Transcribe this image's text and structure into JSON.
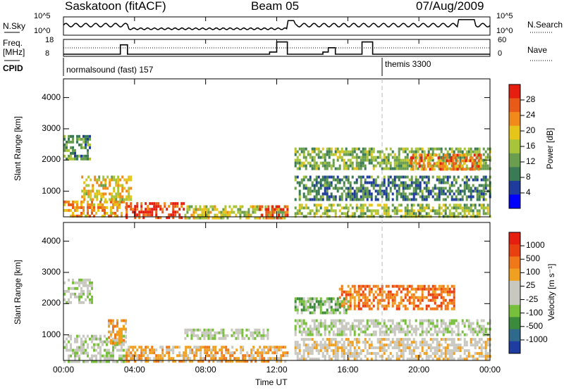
{
  "header": {
    "station": "Saskatoon (fitACF)",
    "beam": "Beam 05",
    "date": "07/Aug/2009"
  },
  "top_panels": {
    "nsky_label": "N.Sky",
    "nsky_ticks": [
      "10^5",
      "10^0"
    ],
    "nsearch_label": "N.Search",
    "nsearch_ticks": [
      "10^5",
      "10^0"
    ],
    "freq_label_1": "Freq.",
    "freq_label_2": "[MHz]",
    "freq_ticks": [
      "18",
      "8"
    ],
    "nave_label": "Nave",
    "nave_ticks": [
      "60",
      "0"
    ],
    "cpid_label": "CPID",
    "cpid_segments": [
      {
        "name": "normalsound (fast) 157",
        "start_hour": 0
      },
      {
        "name": "themis 3300",
        "start_hour": 18
      }
    ]
  },
  "colors": {
    "power_scale": [
      "#0000ff",
      "#1f3c9c",
      "#3a7a55",
      "#6a9e4e",
      "#a8c43a",
      "#e6c41a",
      "#f08a1a",
      "#e85a18",
      "#e61e10"
    ],
    "velocity_scale": [
      "#1f3ca0",
      "#2f6a8c",
      "#3c8a3c",
      "#78c03c",
      "#c8c8c0",
      "#c8c8c0",
      "#f0a020",
      "#f07818",
      "#e84010",
      "#e61e10"
    ]
  },
  "chart_data": [
    {
      "type": "heatmap",
      "name": "power",
      "ylabel": "Slant Range [km]",
      "yticks": [
        "4000",
        "3000",
        "2000",
        "1000"
      ],
      "ylim": [
        180,
        4600
      ],
      "xlim_hours": [
        0,
        24
      ],
      "colorbar_label": "Power [dB]",
      "colorbar_ticks": [
        "28",
        "24",
        "20",
        "16",
        "12",
        "8",
        "4"
      ],
      "colorbar_range": [
        0,
        30
      ],
      "regions": [
        {
          "t0": 0.0,
          "t1": 3.5,
          "r0": 180,
          "r1": 700,
          "level": 22
        },
        {
          "t0": 1.0,
          "t1": 3.8,
          "r0": 700,
          "r1": 1500,
          "level": 18
        },
        {
          "t0": 0.0,
          "t1": 1.5,
          "r0": 2000,
          "r1": 2800,
          "level": 10
        },
        {
          "t0": 3.5,
          "t1": 6.8,
          "r0": 180,
          "r1": 650,
          "level": 28
        },
        {
          "t0": 6.8,
          "t1": 12.5,
          "r0": 180,
          "r1": 550,
          "level": 16
        },
        {
          "t0": 11.0,
          "t1": 12.6,
          "r0": 180,
          "r1": 550,
          "level": 28
        },
        {
          "t0": 13.0,
          "t1": 24.0,
          "r0": 180,
          "r1": 600,
          "level": 14
        },
        {
          "t0": 13.0,
          "t1": 24.0,
          "r0": 700,
          "r1": 1500,
          "level": 8
        },
        {
          "t0": 13.0,
          "t1": 24.0,
          "r0": 1700,
          "r1": 2400,
          "level": 12
        },
        {
          "t0": 19.5,
          "t1": 23.5,
          "r0": 1700,
          "r1": 2200,
          "level": 24
        }
      ]
    },
    {
      "type": "heatmap",
      "name": "velocity",
      "xlabel": "Time UT",
      "ylabel": "Slant Range [km]",
      "yticks": [
        "4000",
        "3000",
        "2000",
        "1000"
      ],
      "ylim": [
        180,
        4600
      ],
      "xlim_hours": [
        0,
        24
      ],
      "xticks": [
        "00:00",
        "04:00",
        "08:00",
        "12:00",
        "16:00",
        "20:00",
        "00:00"
      ],
      "colorbar_label": "Velocity [m s⁻¹]",
      "colorbar_ticks": [
        "1000",
        "500",
        "100",
        "25",
        "-25",
        "-100",
        "-500",
        "-1000"
      ],
      "regions": [
        {
          "t0": 0.0,
          "t1": 3.5,
          "r0": 180,
          "r1": 1000,
          "level": 4
        },
        {
          "t0": 0.0,
          "t1": 1.6,
          "r0": 2000,
          "r1": 2800,
          "level": 4
        },
        {
          "t0": 2.5,
          "t1": 3.5,
          "r0": 700,
          "r1": 1500,
          "level": 6
        },
        {
          "t0": 3.5,
          "t1": 12.6,
          "r0": 180,
          "r1": 650,
          "level": 6
        },
        {
          "t0": 6.8,
          "t1": 11.5,
          "r0": 900,
          "r1": 1200,
          "level": 4
        },
        {
          "t0": 13.0,
          "t1": 24.0,
          "r0": 180,
          "r1": 900,
          "level": 5
        },
        {
          "t0": 13.0,
          "t1": 24.0,
          "r0": 1000,
          "r1": 1500,
          "level": 4
        },
        {
          "t0": 15.5,
          "t1": 22.0,
          "r0": 1800,
          "r1": 2600,
          "level": 7
        },
        {
          "t0": 13.0,
          "t1": 16.0,
          "r0": 1700,
          "r1": 2200,
          "level": 3
        }
      ]
    }
  ]
}
